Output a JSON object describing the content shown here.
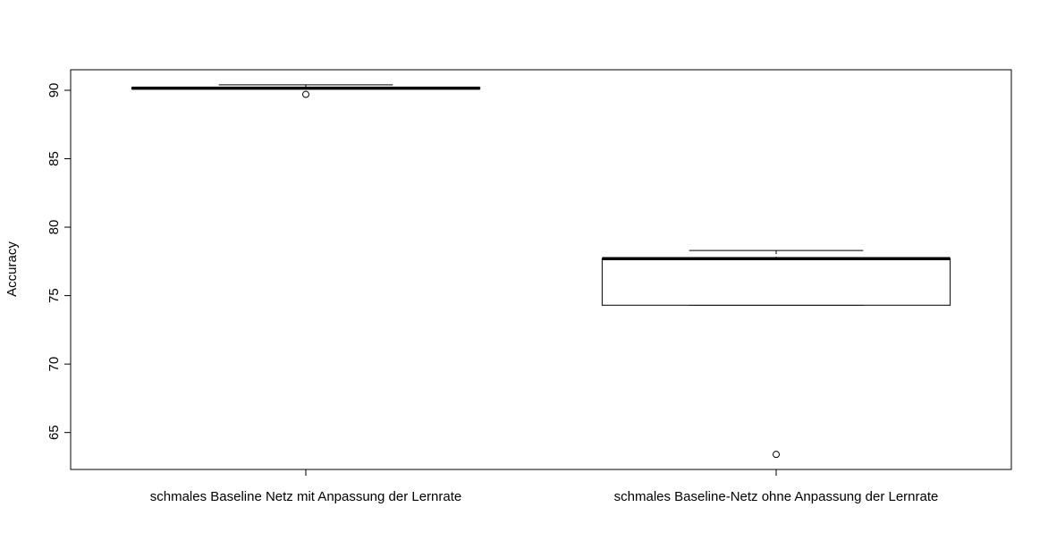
{
  "chart_data": {
    "type": "boxplot",
    "title": "",
    "xlabel": "",
    "ylabel": "Accuracy",
    "ylim": [
      62.3,
      91.5
    ],
    "yticks": [
      65,
      70,
      75,
      80,
      85,
      90
    ],
    "grid": false,
    "categories": [
      "schmales Baseline Netz mit Anpassung der Lernrate",
      "schmales Baseline-Netz ohne Anpassung der Lernrate"
    ],
    "boxes": [
      {
        "whisker_low": 90.1,
        "q1": 90.1,
        "median": 90.15,
        "q3": 90.2,
        "whisker_high": 90.4,
        "outliers": [
          89.7
        ]
      },
      {
        "whisker_low": 74.3,
        "q1": 74.3,
        "median": 77.7,
        "q3": 77.7,
        "whisker_high": 78.3,
        "outliers": [
          63.4
        ]
      }
    ]
  }
}
